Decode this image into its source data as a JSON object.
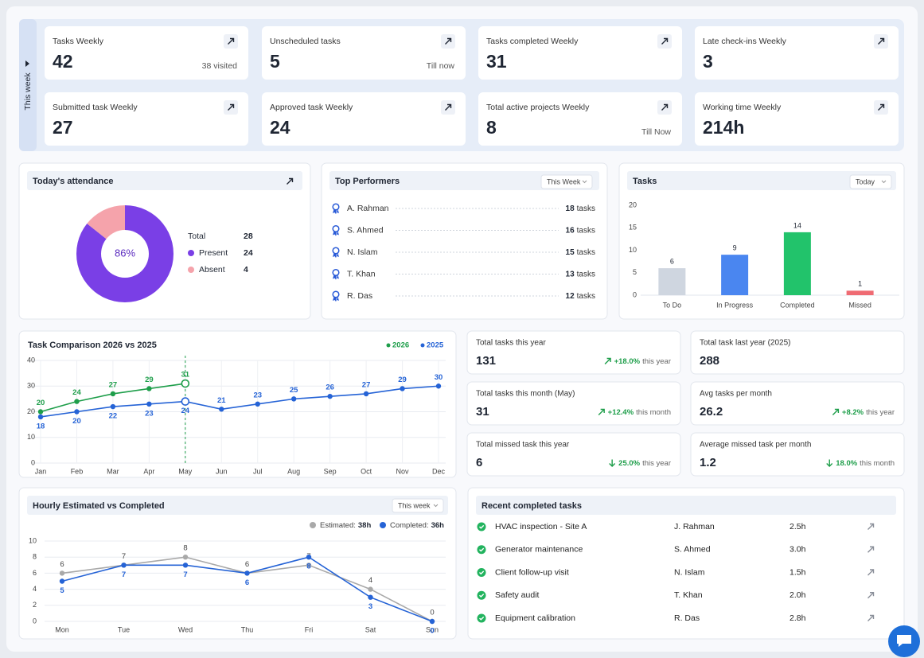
{
  "week_label": "This week",
  "kpis": [
    {
      "label": "Tasks Weekly",
      "value": 42,
      "note": "38 visited"
    },
    {
      "label": "Unscheduled tasks",
      "value": 5,
      "note": "Till now"
    },
    {
      "label": "Tasks completed Weekly",
      "value": 31
    },
    {
      "label": "Late check-ins Weekly",
      "value": 3
    },
    {
      "label": "Submitted task Weekly",
      "value": 27
    },
    {
      "label": "Approved task Weekly",
      "value": 24
    },
    {
      "label": "Total active projects Weekly",
      "value": 8,
      "note": "Till Now"
    },
    {
      "label": "Working time Weekly",
      "value": "214h"
    }
  ],
  "chart_data": [
    {
      "type": "donut",
      "title": "Today's attendance",
      "center_label": "86%",
      "total_label": "Total",
      "total": 28,
      "categories": [
        "Present",
        "Absent"
      ],
      "values": [
        24,
        4
      ],
      "colors": [
        "#7a3fe6",
        "#f5a3ab"
      ]
    },
    {
      "type": "bar",
      "title": "Tasks",
      "period": "Today",
      "categories": [
        "To Do",
        "In Progress",
        "Completed",
        "Missed"
      ],
      "values": [
        6,
        9,
        14,
        1
      ],
      "colors": [
        "#cfd6e0",
        "#4a86f0",
        "#22c36b",
        "#ef6b73"
      ],
      "ylim": [
        0,
        20
      ],
      "yticks": [
        0,
        5,
        10,
        15,
        20
      ]
    },
    {
      "type": "line",
      "title": "Task Comparison 2026 vs 2025",
      "categories": [
        "Jan",
        "Feb",
        "Mar",
        "Apr",
        "May",
        "Jun",
        "Jul",
        "Aug",
        "Sep",
        "Oct",
        "Nov",
        "Dec"
      ],
      "series": [
        {
          "name": "2026",
          "color": "#1e9e4a",
          "values": [
            20,
            24,
            27,
            29,
            31,
            null,
            null,
            null,
            null,
            null,
            null,
            null
          ]
        },
        {
          "name": "2025",
          "color": "#2563d6",
          "values": [
            18,
            20,
            22,
            23,
            24,
            21,
            23,
            25,
            26,
            27,
            29,
            30
          ]
        }
      ],
      "ylim": [
        0,
        40
      ],
      "yticks": [
        0,
        10,
        20,
        30,
        40
      ],
      "grid": true,
      "highlight": "May",
      "legend": "top-right"
    },
    {
      "type": "line",
      "title": "Hourly Estimated vs Completed",
      "period": "This week",
      "categories": [
        "Mon",
        "Tue",
        "Wed",
        "Thu",
        "Fri",
        "Sat",
        "Sun"
      ],
      "series": [
        {
          "name": "Estimated:",
          "total": "38h",
          "color": "#a9a9a9",
          "values": [
            6,
            7,
            8,
            6,
            7,
            4,
            0
          ]
        },
        {
          "name": "Completed:",
          "total": "36h",
          "color": "#2563d6",
          "values": [
            5,
            7,
            7,
            6,
            8,
            3,
            0
          ]
        }
      ],
      "ylim": [
        0,
        10
      ],
      "yticks": [
        0,
        2,
        4,
        6,
        8,
        10
      ],
      "grid": true,
      "legend": "top-right"
    }
  ],
  "performers": {
    "title": "Top Performers",
    "period": "This Week",
    "rows": [
      {
        "name": "A. Rahman",
        "tasks": 18,
        "unit": "tasks"
      },
      {
        "name": "S. Ahmed",
        "tasks": 16,
        "unit": "tasks"
      },
      {
        "name": "N. Islam",
        "tasks": 15,
        "unit": "tasks"
      },
      {
        "name": "T. Khan",
        "tasks": 13,
        "unit": "tasks"
      },
      {
        "name": "R. Das",
        "tasks": 12,
        "unit": "tasks"
      }
    ]
  },
  "stats": [
    {
      "label": "Total tasks this year",
      "value": 131,
      "change": "+18.0%",
      "period": "this year",
      "trend": "up"
    },
    {
      "label": "Total task last year (2025)",
      "value": 288
    },
    {
      "label": "Total tasks this month (May)",
      "value": 31,
      "change": "+12.4%",
      "period": "this month",
      "trend": "up"
    },
    {
      "label": "Avg tasks per month",
      "value": 26.2,
      "change": "+8.2%",
      "period": "this year",
      "trend": "up"
    },
    {
      "label": "Total missed task this year",
      "value": 6,
      "change": "25.0%",
      "period": "this year",
      "trend": "down"
    },
    {
      "label": "Average missed task per month",
      "value": 1.2,
      "change": "18.0%",
      "period": "this month",
      "trend": "down"
    }
  ],
  "recent": {
    "title": "Recent completed tasks",
    "rows": [
      [
        "HVAC inspection - Site A",
        "J. Rahman",
        "2.5h"
      ],
      [
        "Generator maintenance",
        "S. Ahmed",
        "3.0h"
      ],
      [
        "Client follow-up visit",
        "N. Islam",
        "1.5h"
      ],
      [
        "Safety audit",
        "T. Khan",
        "2.0h"
      ],
      [
        "Equipment calibration",
        "R. Das",
        "2.8h"
      ]
    ]
  }
}
